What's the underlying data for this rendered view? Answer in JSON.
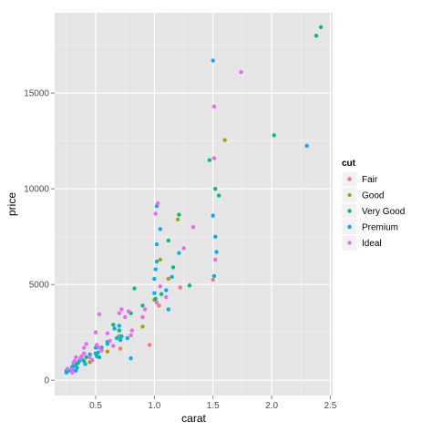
{
  "chart_data": {
    "type": "scatter",
    "xlabel": "carat",
    "ylabel": "price",
    "xlim": [
      0.15,
      2.52
    ],
    "ylim": [
      -800,
      19200
    ],
    "xticks": [
      0.5,
      1.0,
      1.5,
      2.0,
      2.5
    ],
    "xtick_labels": [
      "0.5",
      "1.0",
      "1.5",
      "2.0",
      "2.5"
    ],
    "yticks": [
      0,
      5000,
      10000,
      15000
    ],
    "ytick_labels": [
      "0",
      "5000",
      "10000",
      "15000"
    ],
    "grid": true,
    "legend": {
      "title": "cut",
      "position": "right"
    },
    "series": [
      {
        "name": "Fair",
        "color": "#F8766D",
        "points": [
          [
            0.96,
            1850
          ],
          [
            1.04,
            3900
          ],
          [
            1.22,
            4850
          ],
          [
            0.71,
            1650
          ],
          [
            1.5,
            5250
          ]
        ]
      },
      {
        "name": "Good",
        "color": "#A3A500",
        "points": [
          [
            1.6,
            12550
          ],
          [
            1.2,
            8400
          ],
          [
            0.9,
            2800
          ],
          [
            1.05,
            6300
          ],
          [
            0.7,
            2300
          ],
          [
            0.3,
            600
          ],
          [
            1.0,
            4200
          ],
          [
            0.45,
            950
          ],
          [
            1.12,
            5300
          ],
          [
            0.6,
            1500
          ]
        ]
      },
      {
        "name": "Very Good",
        "color": "#00BF7D",
        "points": [
          [
            2.42,
            18450
          ],
          [
            2.38,
            18000
          ],
          [
            2.02,
            12800
          ],
          [
            1.52,
            10000
          ],
          [
            1.47,
            11500
          ],
          [
            1.55,
            9650
          ],
          [
            1.21,
            8650
          ],
          [
            1.16,
            5900
          ],
          [
            0.83,
            4800
          ],
          [
            0.9,
            3900
          ],
          [
            1.01,
            4250
          ],
          [
            1.06,
            4500
          ],
          [
            0.8,
            3500
          ],
          [
            1.12,
            7300
          ],
          [
            1.3,
            4950
          ],
          [
            0.3,
            700
          ],
          [
            0.33,
            820
          ],
          [
            0.4,
            1000
          ],
          [
            0.5,
            1400
          ],
          [
            0.55,
            1700
          ],
          [
            0.6,
            2000
          ],
          [
            0.7,
            2600
          ],
          [
            0.25,
            500
          ],
          [
            0.35,
            900
          ],
          [
            0.42,
            1200
          ],
          [
            0.65,
            2900
          ],
          [
            0.53,
            1200
          ]
        ]
      },
      {
        "name": "Premium",
        "color": "#00B0F6",
        "points": [
          [
            1.5,
            16700
          ],
          [
            2.3,
            12250
          ],
          [
            1.5,
            8600
          ],
          [
            1.52,
            7500
          ],
          [
            1.51,
            5450
          ],
          [
            1.21,
            6650
          ],
          [
            1.05,
            7900
          ],
          [
            1.02,
            6200
          ],
          [
            1.01,
            5800
          ],
          [
            1.0,
            5300
          ],
          [
            1.1,
            4700
          ],
          [
            1.12,
            3700
          ],
          [
            1.0,
            4550
          ],
          [
            1.53,
            6700
          ],
          [
            1.02,
            7100
          ],
          [
            1.15,
            5400
          ],
          [
            0.5,
            1700
          ],
          [
            0.45,
            1350
          ],
          [
            0.38,
            1100
          ],
          [
            0.31,
            750
          ],
          [
            0.27,
            500
          ],
          [
            0.34,
            650
          ],
          [
            0.41,
            850
          ],
          [
            0.51,
            1250
          ],
          [
            0.71,
            2100
          ],
          [
            0.6,
            1900
          ],
          [
            0.36,
            1000
          ],
          [
            0.7,
            2850
          ],
          [
            0.66,
            2700
          ],
          [
            0.3,
            600
          ],
          [
            0.25,
            400
          ],
          [
            0.33,
            500
          ],
          [
            0.52,
            1450
          ],
          [
            0.8,
            1150
          ],
          [
            0.77,
            2200
          ],
          [
            0.72,
            2300
          ],
          [
            0.68,
            2200
          ],
          [
            1.02,
            9100
          ]
        ]
      },
      {
        "name": "Ideal",
        "color": "#E76BF3",
        "points": [
          [
            1.74,
            16100
          ],
          [
            1.51,
            14300
          ],
          [
            1.51,
            11600
          ],
          [
            1.03,
            9250
          ],
          [
            1.01,
            8700
          ],
          [
            0.72,
            3700
          ],
          [
            0.7,
            3500
          ],
          [
            0.75,
            3300
          ],
          [
            0.78,
            3600
          ],
          [
            0.81,
            2600
          ],
          [
            0.9,
            3300
          ],
          [
            0.92,
            3700
          ],
          [
            1.02,
            4050
          ],
          [
            1.05,
            4900
          ],
          [
            1.1,
            4350
          ],
          [
            1.33,
            8000
          ],
          [
            1.25,
            6900
          ],
          [
            1.52,
            6300
          ],
          [
            0.51,
            1850
          ],
          [
            0.53,
            3450
          ],
          [
            0.5,
            2500
          ],
          [
            0.42,
            1900
          ],
          [
            0.4,
            1700
          ],
          [
            0.55,
            1550
          ],
          [
            0.6,
            2450
          ],
          [
            0.31,
            900
          ],
          [
            0.32,
            1000
          ],
          [
            0.26,
            600
          ],
          [
            0.3,
            550
          ],
          [
            0.37,
            1150
          ],
          [
            0.38,
            1250
          ],
          [
            0.4,
            1400
          ],
          [
            0.45,
            1200
          ],
          [
            0.47,
            1050
          ],
          [
            0.33,
            1200
          ],
          [
            0.65,
            1800
          ],
          [
            0.3,
            400
          ],
          [
            0.8,
            2350
          ],
          [
            0.62,
            2050
          ],
          [
            0.53,
            1700
          ]
        ]
      }
    ]
  }
}
